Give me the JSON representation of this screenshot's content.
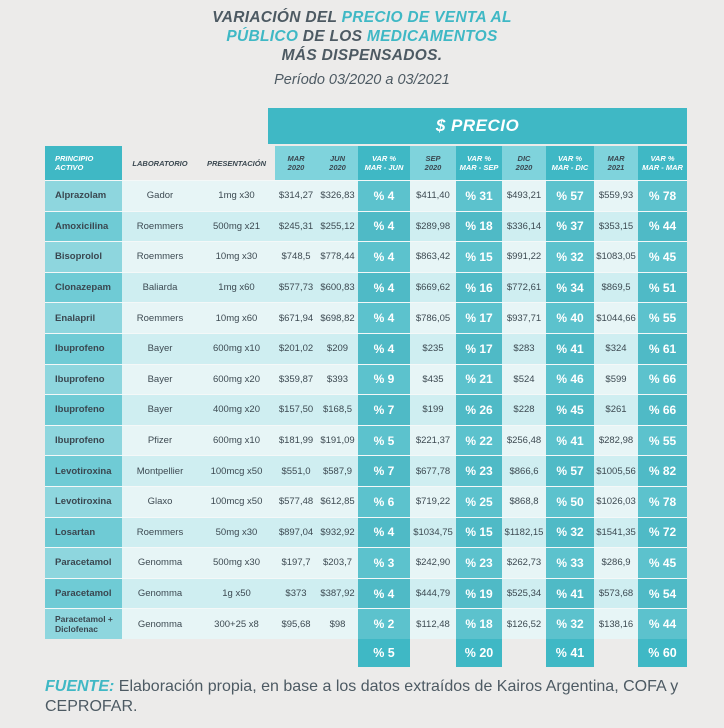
{
  "title": {
    "line1_a": "VARIACIÓN DEL ",
    "line1_b": "PRECIO DE VENTA AL",
    "line2_a": "PÚBLICO",
    "line2_b": " DE LOS ",
    "line2_c": "MEDICAMENTOS",
    "line3": "MÁS DISPENSADOS."
  },
  "period": "Período 03/2020 a 03/2021",
  "precio_header": "$ PRECIO",
  "columns": {
    "principio": [
      "PRINCIPIO",
      "ACTIVO"
    ],
    "laboratorio": "LABORATORIO",
    "presentacion": "PRESENTACIÓN",
    "mar2020": [
      "MAR",
      "2020"
    ],
    "jun2020": [
      "JUN",
      "2020"
    ],
    "var_mar_jun": [
      "VAR %",
      "MAR - JUN"
    ],
    "sep2020": [
      "SEP",
      "2020"
    ],
    "var_mar_sep": [
      "VAR %",
      "MAR - SEP"
    ],
    "dic2020": [
      "DIC",
      "2020"
    ],
    "var_mar_dic": [
      "VAR %",
      "MAR - DIC"
    ],
    "mar2021": [
      "MAR",
      "2021"
    ],
    "var_mar_mar": [
      "VAR %",
      "MAR - MAR"
    ]
  },
  "rows": [
    [
      "Alprazolam",
      "Gador",
      "1mg x30",
      "$314,27",
      "$326,83",
      "% 4",
      "$411,40",
      "% 31",
      "$493,21",
      "% 57",
      "$559,93",
      "% 78"
    ],
    [
      "Amoxicilina",
      "Roemmers",
      "500mg x21",
      "$245,31",
      "$255,12",
      "% 4",
      "$289,98",
      "% 18",
      "$336,14",
      "% 37",
      "$353,15",
      "% 44"
    ],
    [
      "Bisoprolol",
      "Roemmers",
      "10mg x30",
      "$748,5",
      "$778,44",
      "% 4",
      "$863,42",
      "% 15",
      "$991,22",
      "% 32",
      "$1083,05",
      "% 45"
    ],
    [
      "Clonazepam",
      "Baliarda",
      "1mg x60",
      "$577,73",
      "$600,83",
      "% 4",
      "$669,62",
      "% 16",
      "$772,61",
      "% 34",
      "$869,5",
      "% 51"
    ],
    [
      "Enalapril",
      "Roemmers",
      "10mg x60",
      "$671,94",
      "$698,82",
      "% 4",
      "$786,05",
      "% 17",
      "$937,71",
      "% 40",
      "$1044,66",
      "% 55"
    ],
    [
      "Ibuprofeno",
      "Bayer",
      "600mg x10",
      "$201,02",
      "$209",
      "% 4",
      "$235",
      "% 17",
      "$283",
      "% 41",
      "$324",
      "% 61"
    ],
    [
      "Ibuprofeno",
      "Bayer",
      "600mg x20",
      "$359,87",
      "$393",
      "% 9",
      "$435",
      "% 21",
      "$524",
      "% 46",
      "$599",
      "% 66"
    ],
    [
      "Ibuprofeno",
      "Bayer",
      "400mg x20",
      "$157,50",
      "$168,5",
      "% 7",
      "$199",
      "% 26",
      "$228",
      "% 45",
      "$261",
      "% 66"
    ],
    [
      "Ibuprofeno",
      "Pfizer",
      "600mg x10",
      "$181,99",
      "$191,09",
      "% 5",
      "$221,37",
      "% 22",
      "$256,48",
      "% 41",
      "$282,98",
      "% 55"
    ],
    [
      "Levotiroxina",
      "Montpellier",
      "100mcg x50",
      "$551,0",
      "$587,9",
      "% 7",
      "$677,78",
      "% 23",
      "$866,6",
      "% 57",
      "$1005,56",
      "% 82"
    ],
    [
      "Levotiroxina",
      "Glaxo",
      "100mcg x50",
      "$577,48",
      "$612,85",
      "% 6",
      "$719,22",
      "% 25",
      "$868,8",
      "% 50",
      "$1026,03",
      "% 78"
    ],
    [
      "Losartan",
      "Roemmers",
      "50mg x30",
      "$897,04",
      "$932,92",
      "% 4",
      "$1034,75",
      "% 15",
      "$1182,15",
      "% 32",
      "$1541,35",
      "% 72"
    ],
    [
      "Paracetamol",
      "Genomma",
      "500mg x30",
      "$197,7",
      "$203,7",
      "% 3",
      "$242,90",
      "% 23",
      "$262,73",
      "% 33",
      "$286,9",
      "% 45"
    ],
    [
      "Paracetamol",
      "Genomma",
      "1g x50",
      "$373",
      "$387,92",
      "% 4",
      "$444,79",
      "% 19",
      "$525,34",
      "% 41",
      "$573,68",
      "% 54"
    ],
    [
      "Paracetamol + Diclofenac",
      "Genomma",
      "300+25 x8",
      "$95,68",
      "$98",
      "% 2",
      "$112,48",
      "% 18",
      "$126,52",
      "% 32",
      "$138,16",
      "% 44"
    ]
  ],
  "totals": {
    "var_mar_jun": "% 5",
    "var_mar_sep": "% 20",
    "var_mar_dic": "% 41",
    "var_mar_mar": "% 60"
  },
  "source": {
    "label": "FUENTE:",
    "text": " Elaboración propia, en base a los datos extraídos de Kairos Argentina, COFA y CEPROFAR."
  },
  "colors": {
    "accent": "#3fb8c5",
    "text": "#4d5a63",
    "background": "#ecebea"
  }
}
